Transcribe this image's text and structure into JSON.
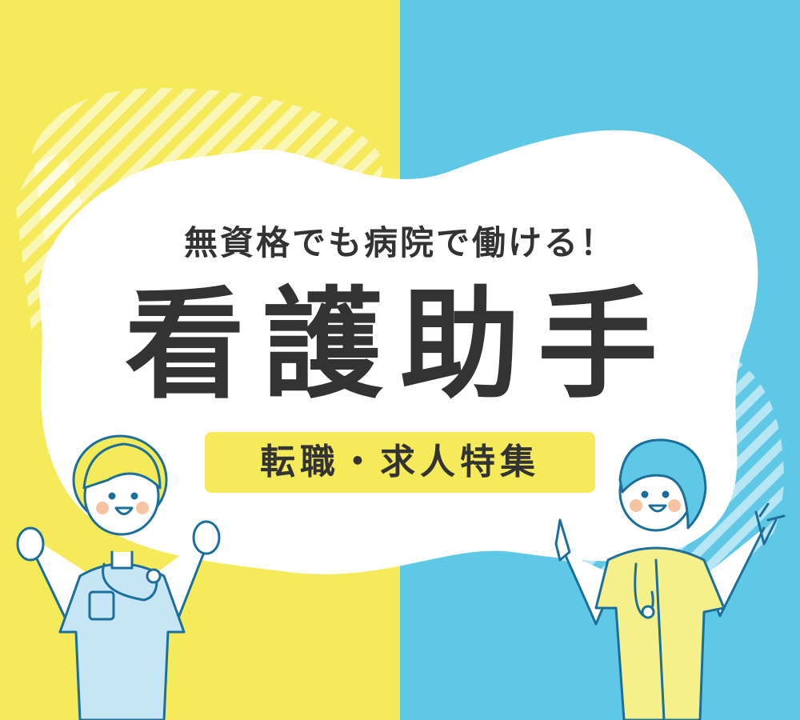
{
  "banner": {
    "subtitle": "無資格でも病院で働ける！",
    "title": "看護助手",
    "tag": "転職・求人特集"
  },
  "colors": {
    "left_background": "#f5ea5a",
    "right_background": "#5ec8e6",
    "cloud": "#ffffff",
    "text": "#333333",
    "accent_blue": "#5ec8e6",
    "accent_yellow": "#f5ea5a"
  },
  "illustrations": [
    "nurse-illustration-cheering",
    "nurse-illustration-pointing"
  ]
}
